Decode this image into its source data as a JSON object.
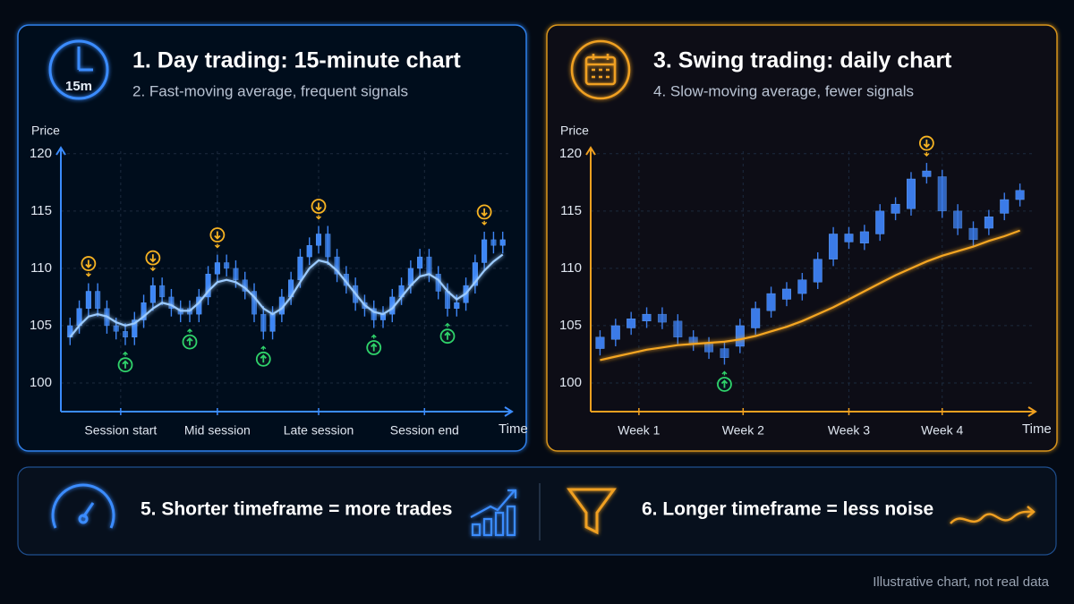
{
  "chart_data": [
    {
      "type": "candlestick",
      "title": "1. Day trading: 15-minute chart",
      "subtitle": "2. Fast-moving average, frequent signals",
      "icon_label": "15m",
      "y_label": "Price",
      "x_label": "Time",
      "color": "#3d86f5",
      "ma_color": "#9ccbff",
      "accent": "#3b8cff",
      "buy_color": "#2fd36b",
      "sell_color": "#f7b322",
      "xlim": [
        -1,
        48
      ],
      "ylim": [
        97.5,
        121
      ],
      "yticks": [
        100,
        105,
        110,
        115,
        120
      ],
      "xticks": [
        {
          "value": 5.5,
          "label": "Session start"
        },
        {
          "value": 16,
          "label": "Mid session"
        },
        {
          "value": 27,
          "label": "Late session"
        },
        {
          "value": 38.5,
          "label": "Session end"
        }
      ],
      "grid": true,
      "open": [
        104,
        105,
        106.5,
        108,
        106.5,
        105,
        104.5,
        104,
        105.5,
        107,
        108.5,
        107.5,
        106.5,
        106.5,
        106,
        107.5,
        109.5,
        110.5,
        110,
        109,
        108,
        106,
        104.5,
        106,
        107.5,
        109,
        111,
        112,
        113,
        111,
        109.5,
        108.5,
        107,
        106.5,
        105.5,
        106,
        107.5,
        108.5,
        110,
        111,
        109.5,
        108,
        106.5,
        107,
        108.5,
        110.5,
        112.5,
        112
      ],
      "high": [
        105.7,
        107.2,
        108.7,
        108.7,
        107.2,
        105.7,
        105.2,
        106.2,
        107.7,
        109.2,
        109.2,
        108.2,
        107.2,
        107.2,
        108.2,
        110.2,
        111.2,
        111.2,
        110.7,
        109.7,
        108.7,
        106.7,
        106.7,
        108.2,
        109.7,
        111.7,
        112.7,
        113.7,
        113.7,
        111.7,
        110.2,
        109.2,
        107.7,
        107.2,
        106.7,
        108.2,
        109.2,
        110.7,
        111.7,
        111.7,
        110.2,
        108.7,
        107.7,
        109.2,
        111.2,
        113.2,
        113.2,
        113.2
      ],
      "low": [
        103.3,
        104.3,
        105.8,
        105.8,
        104.3,
        103.8,
        103.3,
        103.3,
        104.8,
        106.3,
        106.8,
        105.8,
        105.3,
        105.3,
        105.3,
        106.8,
        108.8,
        109.3,
        108.3,
        107.3,
        105.3,
        103.8,
        103.8,
        105.3,
        106.8,
        108.3,
        110.3,
        111.3,
        110.3,
        108.8,
        107.8,
        106.3,
        105.8,
        104.8,
        104.8,
        105.3,
        106.8,
        107.8,
        109.3,
        108.8,
        107.3,
        105.8,
        105.8,
        106.3,
        107.8,
        109.8,
        111.3,
        111.3
      ],
      "close": [
        105,
        106.5,
        108,
        106.5,
        105,
        104.5,
        104,
        105.5,
        107,
        108.5,
        107.5,
        106.5,
        106,
        106,
        107.5,
        109.5,
        110.5,
        110,
        109,
        108,
        106,
        104.5,
        106,
        107.5,
        109,
        111,
        112,
        113,
        111,
        109.5,
        108.5,
        107,
        106.5,
        105.5,
        106,
        107.5,
        108.5,
        110,
        111,
        109.5,
        108,
        106.5,
        107,
        108.5,
        110.5,
        112.5,
        112,
        112.5
      ],
      "moving_average": [
        104,
        105,
        105.8,
        106,
        105.8,
        105.3,
        105,
        105.2,
        105.8,
        106.5,
        107,
        106.8,
        106.3,
        106.3,
        107,
        108,
        108.8,
        109,
        108.8,
        108.3,
        107.5,
        106.5,
        106,
        106.5,
        107.5,
        108.8,
        110,
        110.7,
        110.5,
        109.8,
        108.8,
        107.8,
        106.8,
        106.2,
        106,
        106.5,
        107.5,
        108.5,
        109.3,
        109.5,
        109,
        108,
        107.3,
        107.8,
        108.8,
        109.8,
        110.6,
        111.2
      ],
      "buy_signals": [
        6,
        13,
        21,
        33,
        41
      ],
      "sell_signals": [
        2,
        9,
        16,
        27,
        45
      ]
    },
    {
      "type": "candlestick",
      "title": "3. Swing trading: daily chart",
      "subtitle": "4. Slow-moving average, fewer signals",
      "y_label": "Price",
      "x_label": "Time",
      "color": "#3b7be8",
      "ma_color": "#f5a623",
      "accent": "#f0a020",
      "buy_color": "#2fd36b",
      "sell_color": "#f7b322",
      "xlim": [
        -0.6,
        28
      ],
      "ylim": [
        97.5,
        121
      ],
      "yticks": [
        100,
        105,
        110,
        115,
        120
      ],
      "xticks": [
        {
          "value": 2.5,
          "label": "Week 1"
        },
        {
          "value": 9.2,
          "label": "Week 2"
        },
        {
          "value": 16,
          "label": "Week 3"
        },
        {
          "value": 22,
          "label": "Week 4"
        }
      ],
      "grid": true,
      "open": [
        103,
        103.8,
        104.8,
        105.4,
        106,
        105.4,
        104,
        103.4,
        103,
        103.2,
        104.8,
        106.3,
        107.3,
        107.8,
        108.8,
        110.8,
        112.3,
        112.2,
        113,
        114.8,
        115.2,
        118,
        118,
        115,
        113.5,
        113.5,
        114.8,
        116
      ],
      "high": [
        104.6,
        105.6,
        106.2,
        106.6,
        106.6,
        106,
        104.6,
        104,
        103.6,
        105.6,
        107.1,
        108.4,
        108.8,
        109.6,
        111.4,
        113.6,
        113.6,
        113.8,
        115.6,
        116.2,
        118.4,
        119.2,
        118.6,
        115.6,
        114.1,
        115.1,
        116.6,
        117.4
      ],
      "low": [
        102.4,
        103.2,
        104.2,
        104.8,
        104.7,
        103.4,
        102.8,
        102.1,
        101.6,
        102.6,
        104.2,
        105.7,
        106.7,
        107.2,
        108.2,
        110.2,
        111.7,
        111.6,
        112.4,
        114.2,
        114.6,
        117.4,
        114.4,
        112.9,
        111.9,
        112.9,
        114.2,
        115.4
      ],
      "close": [
        104,
        105,
        105.6,
        106,
        105.3,
        104,
        103.4,
        102.7,
        102.2,
        105,
        106.5,
        107.8,
        108.2,
        109,
        110.8,
        113,
        113,
        113.2,
        115,
        115.6,
        117.8,
        118.5,
        115,
        113.5,
        112.5,
        114.5,
        116,
        116.8
      ],
      "moving_average": [
        102,
        102.3,
        102.6,
        102.9,
        103.1,
        103.3,
        103.4,
        103.5,
        103.6,
        103.8,
        104.1,
        104.5,
        104.9,
        105.4,
        106,
        106.6,
        107.3,
        108,
        108.7,
        109.4,
        110,
        110.6,
        111.1,
        111.5,
        111.9,
        112.4,
        112.8,
        113.3
      ],
      "buy_signals": [
        8
      ],
      "sell_signals": [
        21
      ]
    }
  ],
  "footer": {
    "items": [
      "5. Shorter timeframe = more trades",
      "6. Longer timeframe = less noise"
    ]
  },
  "note": "Illustrative chart, not real data"
}
